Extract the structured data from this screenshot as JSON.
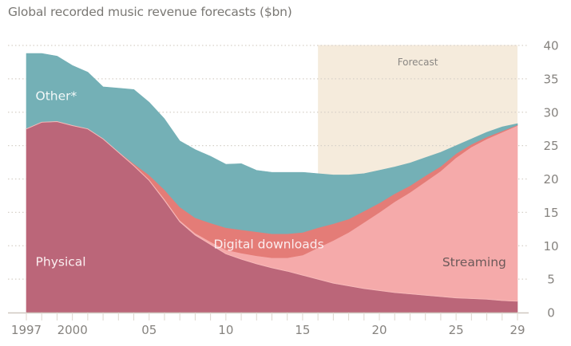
{
  "chart_data": {
    "type": "area",
    "stacked": true,
    "title": "Global recorded music revenue forecasts ($bn)",
    "xlabel": "",
    "ylabel": "",
    "x": [
      1997,
      1998,
      1999,
      2000,
      2001,
      2002,
      2003,
      2004,
      2005,
      2006,
      2007,
      2008,
      2009,
      2010,
      2011,
      2012,
      2013,
      2014,
      2015,
      2016,
      2017,
      2018,
      2019,
      2020,
      2021,
      2022,
      2023,
      2024,
      2025,
      2026,
      2027,
      2028,
      2029
    ],
    "xlim": [
      1997,
      2029
    ],
    "ylim": [
      0,
      40
    ],
    "y_ticks": [
      0,
      5,
      10,
      15,
      20,
      25,
      30,
      35,
      40
    ],
    "y_tick_labels": [
      "0",
      "5",
      "10",
      "15",
      "20",
      "25",
      "30",
      "35",
      "40"
    ],
    "x_ticks": [
      1997,
      2000,
      2005,
      2010,
      2015,
      2020,
      2025,
      2029
    ],
    "x_tick_labels": [
      "1997",
      "2000",
      "05",
      "10",
      "15",
      "20",
      "25",
      "29"
    ],
    "y_axis_position": "right",
    "grid": "horizontal dotted",
    "forecast_region": {
      "label": "Forecast",
      "from": 2016,
      "to": 2029,
      "color": "#f5ebdc"
    },
    "series": [
      {
        "name": "Physical",
        "color": "#bb6679",
        "label_color": "#fbeef0",
        "values": [
          27.5,
          28.5,
          28.6,
          28.0,
          27.5,
          26.0,
          24.0,
          22.0,
          19.8,
          16.8,
          13.6,
          11.6,
          10.2,
          8.8,
          8.0,
          7.3,
          6.7,
          6.2,
          5.6,
          5.0,
          4.4,
          4.0,
          3.6,
          3.3,
          3.0,
          2.8,
          2.6,
          2.4,
          2.2,
          2.1,
          2.0,
          1.8,
          1.7
        ]
      },
      {
        "name": "Streaming",
        "color": "#f5aaaa",
        "label_color": "#6d5a5a",
        "values": [
          0,
          0,
          0,
          0,
          0,
          0,
          0,
          0,
          0.1,
          0.2,
          0.2,
          0.3,
          0.4,
          0.6,
          0.9,
          1.2,
          1.5,
          2.0,
          3.0,
          4.7,
          6.4,
          8.0,
          9.9,
          11.7,
          13.6,
          15.2,
          17.0,
          18.8,
          21.0,
          22.7,
          24.0,
          25.2,
          26.3
        ]
      },
      {
        "name": "Digital downloads",
        "color": "#e47c77",
        "label_color": "#fbeef0",
        "values": [
          0,
          0,
          0,
          0,
          0,
          0,
          0.1,
          0.3,
          0.7,
          1.4,
          2.0,
          2.3,
          2.8,
          3.3,
          3.5,
          3.6,
          3.6,
          3.6,
          3.4,
          3.0,
          2.5,
          2.0,
          1.7,
          1.4,
          1.2,
          1.0,
          0.9,
          0.7,
          0.6,
          0.4,
          0.3,
          0.2,
          0.1
        ]
      },
      {
        "name": "Other*",
        "color": "#74b0b6",
        "label_color": "#f2f8f8",
        "values": [
          11.3,
          10.3,
          9.8,
          9.0,
          8.5,
          7.8,
          9.5,
          11.1,
          10.9,
          10.6,
          9.9,
          10.2,
          10.0,
          9.5,
          9.9,
          9.2,
          9.2,
          9.2,
          9.0,
          8.1,
          7.3,
          6.6,
          5.6,
          4.9,
          4.0,
          3.4,
          2.7,
          2.1,
          1.2,
          0.8,
          0.7,
          0.6,
          0.2
        ]
      }
    ],
    "annotations": [
      {
        "text": "Other*",
        "series": "Other*"
      },
      {
        "text": "Physical",
        "series": "Physical"
      },
      {
        "text": "Digital downloads",
        "series": "Digital downloads"
      },
      {
        "text": "Streaming",
        "series": "Streaming"
      },
      {
        "text": "Forecast",
        "series": null
      }
    ]
  }
}
